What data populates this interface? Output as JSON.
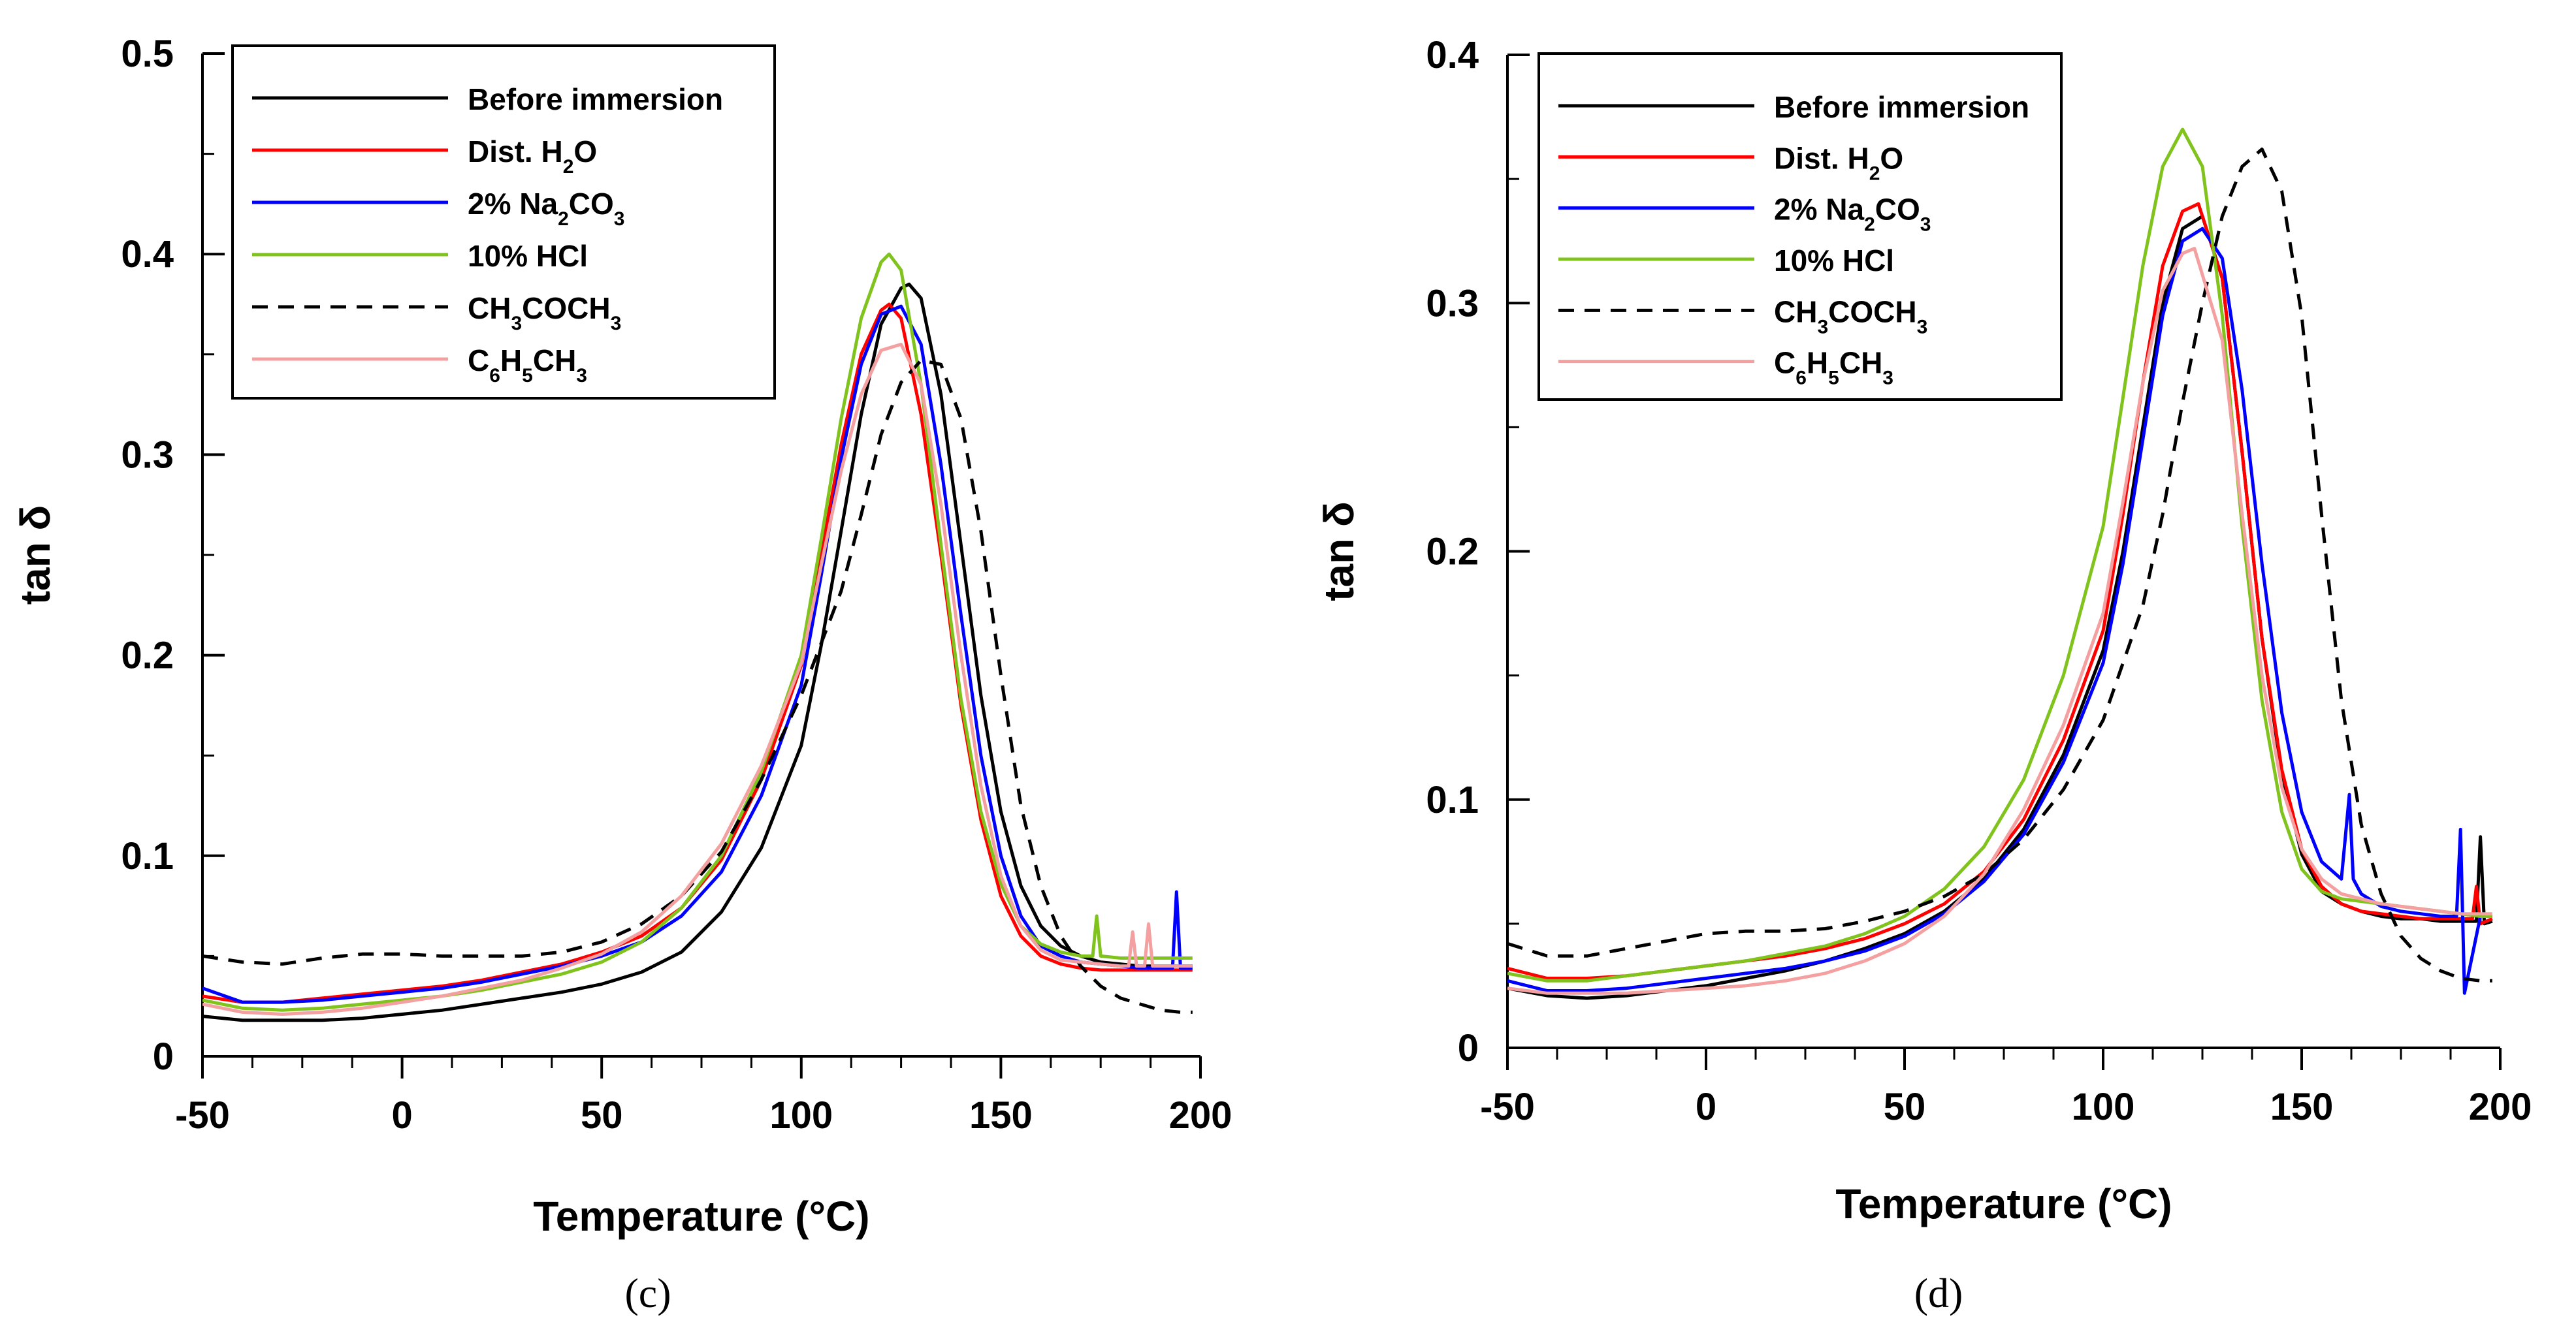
{
  "chart_data": [
    {
      "type": "line",
      "panel_label": "(c)",
      "xlabel": "Temperature (°C)",
      "ylabel": "tan δ",
      "xlim": [
        -50,
        200
      ],
      "ylim": [
        0,
        0.5
      ],
      "xticks": [
        -50,
        0,
        50,
        100,
        150,
        200
      ],
      "xtick_labels": [
        "-50",
        "0",
        "50",
        "100",
        "150",
        "200"
      ],
      "yticks": [
        0,
        0.1,
        0.2,
        0.3,
        0.4,
        0.5
      ],
      "ytick_labels": [
        "0",
        "0.1",
        "0.2",
        "0.3",
        "0.4",
        "0.5"
      ],
      "grid": false,
      "legend_position": "top-left",
      "series": [
        {
          "name": "Before immersion",
          "color": "#000000",
          "dash": "solid",
          "x": [
            -50,
            -40,
            -30,
            -20,
            -10,
            0,
            10,
            20,
            30,
            40,
            50,
            60,
            70,
            80,
            90,
            100,
            105,
            110,
            115,
            120,
            125,
            127,
            130,
            135,
            140,
            145,
            150,
            155,
            160,
            165,
            170,
            175,
            180,
            185,
            190,
            195,
            198
          ],
          "y": [
            0.02,
            0.018,
            0.018,
            0.018,
            0.019,
            0.021,
            0.023,
            0.026,
            0.029,
            0.032,
            0.036,
            0.042,
            0.052,
            0.072,
            0.104,
            0.155,
            0.205,
            0.262,
            0.32,
            0.365,
            0.383,
            0.385,
            0.378,
            0.33,
            0.255,
            0.18,
            0.122,
            0.085,
            0.065,
            0.055,
            0.05,
            0.047,
            0.046,
            0.045,
            0.045,
            0.045,
            0.045
          ]
        },
        {
          "name": "Dist. H₂O",
          "color": "#ff0000",
          "dash": "solid",
          "x": [
            -50,
            -40,
            -30,
            -20,
            -10,
            0,
            10,
            20,
            30,
            40,
            50,
            60,
            70,
            80,
            90,
            100,
            105,
            110,
            115,
            120,
            122,
            125,
            130,
            135,
            140,
            145,
            150,
            155,
            160,
            165,
            170,
            175,
            180,
            185,
            190,
            195,
            198
          ],
          "y": [
            0.03,
            0.027,
            0.027,
            0.029,
            0.031,
            0.033,
            0.035,
            0.038,
            0.042,
            0.046,
            0.052,
            0.06,
            0.074,
            0.098,
            0.138,
            0.195,
            0.25,
            0.305,
            0.35,
            0.372,
            0.375,
            0.368,
            0.32,
            0.25,
            0.175,
            0.118,
            0.08,
            0.06,
            0.05,
            0.046,
            0.044,
            0.043,
            0.043,
            0.043,
            0.043,
            0.043,
            0.043
          ]
        },
        {
          "name": "2% Na₂CO₃",
          "color": "#0000ff",
          "dash": "solid",
          "x": [
            -50,
            -40,
            -30,
            -20,
            -10,
            0,
            10,
            20,
            30,
            40,
            50,
            60,
            70,
            80,
            90,
            100,
            105,
            110,
            115,
            120,
            125,
            130,
            135,
            140,
            145,
            150,
            155,
            160,
            165,
            170,
            175,
            180,
            185,
            190,
            193,
            194,
            195,
            198
          ],
          "y": [
            0.034,
            0.027,
            0.027,
            0.028,
            0.03,
            0.032,
            0.034,
            0.037,
            0.041,
            0.045,
            0.05,
            0.057,
            0.07,
            0.092,
            0.13,
            0.185,
            0.24,
            0.298,
            0.345,
            0.37,
            0.374,
            0.355,
            0.295,
            0.22,
            0.15,
            0.1,
            0.07,
            0.055,
            0.05,
            0.047,
            0.046,
            0.045,
            0.044,
            0.044,
            0.044,
            0.082,
            0.044,
            0.044
          ]
        },
        {
          "name": "10% HCl",
          "color": "#7fc31c",
          "dash": "solid",
          "x": [
            -50,
            -40,
            -30,
            -20,
            -10,
            0,
            10,
            20,
            30,
            40,
            50,
            60,
            70,
            80,
            90,
            100,
            105,
            110,
            115,
            120,
            122,
            125,
            130,
            135,
            140,
            145,
            150,
            155,
            160,
            165,
            170,
            173,
            174,
            175,
            180,
            185,
            190,
            195,
            198
          ],
          "y": [
            0.028,
            0.024,
            0.023,
            0.024,
            0.026,
            0.028,
            0.03,
            0.033,
            0.037,
            0.041,
            0.047,
            0.057,
            0.074,
            0.1,
            0.142,
            0.2,
            0.258,
            0.318,
            0.368,
            0.396,
            0.4,
            0.392,
            0.335,
            0.255,
            0.178,
            0.122,
            0.086,
            0.065,
            0.056,
            0.052,
            0.05,
            0.05,
            0.07,
            0.05,
            0.049,
            0.049,
            0.049,
            0.049,
            0.049
          ]
        },
        {
          "name": "CH₃COCH₃",
          "color": "#000000",
          "dash": "dashed",
          "x": [
            -50,
            -40,
            -30,
            -20,
            -10,
            0,
            10,
            20,
            30,
            40,
            50,
            60,
            70,
            80,
            90,
            100,
            110,
            115,
            120,
            125,
            130,
            135,
            140,
            145,
            150,
            155,
            160,
            165,
            170,
            175,
            180,
            185,
            190,
            195,
            198
          ],
          "y": [
            0.05,
            0.047,
            0.046,
            0.049,
            0.051,
            0.051,
            0.05,
            0.05,
            0.05,
            0.052,
            0.057,
            0.066,
            0.08,
            0.102,
            0.138,
            0.18,
            0.232,
            0.27,
            0.31,
            0.336,
            0.347,
            0.345,
            0.318,
            0.262,
            0.19,
            0.125,
            0.085,
            0.06,
            0.045,
            0.035,
            0.029,
            0.026,
            0.023,
            0.022,
            0.022
          ]
        },
        {
          "name": "C₆H₅CH₃",
          "color": "#f4a0a0",
          "dash": "solid",
          "x": [
            -50,
            -40,
            -30,
            -20,
            -10,
            0,
            10,
            20,
            30,
            40,
            50,
            60,
            70,
            80,
            90,
            100,
            105,
            110,
            115,
            120,
            125,
            130,
            135,
            140,
            145,
            150,
            155,
            160,
            165,
            170,
            175,
            180,
            182,
            183,
            184,
            186,
            187,
            188,
            190,
            195,
            198
          ],
          "y": [
            0.026,
            0.022,
            0.021,
            0.022,
            0.024,
            0.027,
            0.03,
            0.034,
            0.038,
            0.044,
            0.051,
            0.062,
            0.08,
            0.106,
            0.145,
            0.196,
            0.245,
            0.292,
            0.33,
            0.352,
            0.355,
            0.335,
            0.275,
            0.2,
            0.135,
            0.09,
            0.065,
            0.053,
            0.048,
            0.047,
            0.046,
            0.045,
            0.045,
            0.062,
            0.045,
            0.045,
            0.066,
            0.045,
            0.045,
            0.045,
            0.045
          ]
        }
      ]
    },
    {
      "type": "line",
      "panel_label": "(d)",
      "xlabel": "Temperature (°C)",
      "ylabel": "tan δ",
      "xlim": [
        -50,
        200
      ],
      "ylim": [
        0,
        0.4
      ],
      "xticks": [
        -50,
        0,
        50,
        100,
        150,
        200
      ],
      "xtick_labels": [
        "-50",
        "0",
        "50",
        "100",
        "150",
        "200"
      ],
      "yticks": [
        0,
        0.1,
        0.2,
        0.3,
        0.4
      ],
      "ytick_labels": [
        "0",
        "0.1",
        "0.2",
        "0.3",
        "0.4"
      ],
      "grid": false,
      "legend_position": "top-left",
      "series": [
        {
          "name": "Before immersion",
          "color": "#000000",
          "dash": "solid",
          "x": [
            -50,
            -40,
            -30,
            -20,
            -10,
            0,
            10,
            20,
            30,
            40,
            50,
            60,
            70,
            80,
            90,
            100,
            105,
            110,
            115,
            120,
            125,
            130,
            135,
            140,
            145,
            150,
            155,
            160,
            165,
            170,
            175,
            180,
            185,
            190,
            194,
            195,
            196,
            198
          ],
          "y": [
            0.024,
            0.021,
            0.02,
            0.021,
            0.023,
            0.025,
            0.028,
            0.031,
            0.035,
            0.04,
            0.046,
            0.055,
            0.068,
            0.088,
            0.118,
            0.16,
            0.2,
            0.25,
            0.3,
            0.33,
            0.335,
            0.31,
            0.24,
            0.165,
            0.11,
            0.078,
            0.063,
            0.058,
            0.055,
            0.053,
            0.052,
            0.052,
            0.051,
            0.051,
            0.051,
            0.085,
            0.05,
            0.051
          ]
        },
        {
          "name": "Dist. H₂O",
          "color": "#ff0000",
          "dash": "solid",
          "x": [
            -50,
            -40,
            -30,
            -20,
            -10,
            0,
            10,
            20,
            30,
            40,
            50,
            60,
            70,
            80,
            90,
            100,
            105,
            110,
            115,
            120,
            124,
            130,
            135,
            140,
            145,
            150,
            155,
            160,
            165,
            170,
            175,
            180,
            185,
            190,
            193,
            194,
            195,
            198
          ],
          "y": [
            0.032,
            0.028,
            0.028,
            0.029,
            0.031,
            0.033,
            0.035,
            0.037,
            0.04,
            0.044,
            0.05,
            0.058,
            0.071,
            0.092,
            0.124,
            0.168,
            0.215,
            0.268,
            0.315,
            0.337,
            0.34,
            0.31,
            0.24,
            0.165,
            0.112,
            0.08,
            0.065,
            0.058,
            0.055,
            0.054,
            0.053,
            0.052,
            0.052,
            0.052,
            0.052,
            0.065,
            0.05,
            0.052
          ]
        },
        {
          "name": "2% Na₂CO₃",
          "color": "#0000ff",
          "dash": "solid",
          "x": [
            -50,
            -40,
            -30,
            -20,
            -10,
            0,
            10,
            20,
            30,
            40,
            50,
            60,
            70,
            80,
            90,
            100,
            105,
            110,
            115,
            120,
            125,
            130,
            135,
            140,
            145,
            150,
            155,
            160,
            162,
            163,
            165,
            170,
            175,
            180,
            185,
            189,
            190,
            191,
            195,
            198
          ],
          "y": [
            0.027,
            0.023,
            0.023,
            0.024,
            0.026,
            0.028,
            0.03,
            0.032,
            0.035,
            0.039,
            0.045,
            0.054,
            0.067,
            0.086,
            0.115,
            0.155,
            0.195,
            0.245,
            0.295,
            0.325,
            0.33,
            0.318,
            0.265,
            0.195,
            0.135,
            0.095,
            0.075,
            0.068,
            0.102,
            0.068,
            0.062,
            0.057,
            0.055,
            0.054,
            0.053,
            0.053,
            0.088,
            0.022,
            0.053,
            0.053
          ]
        },
        {
          "name": "10% HCl",
          "color": "#7fc31c",
          "dash": "solid",
          "x": [
            -50,
            -40,
            -30,
            -20,
            -10,
            0,
            10,
            20,
            30,
            40,
            50,
            60,
            70,
            80,
            90,
            100,
            105,
            110,
            115,
            120,
            125,
            130,
            135,
            140,
            145,
            150,
            155,
            160,
            165,
            170,
            175,
            180,
            185,
            190,
            195,
            198
          ],
          "y": [
            0.03,
            0.027,
            0.027,
            0.029,
            0.031,
            0.033,
            0.035,
            0.038,
            0.041,
            0.046,
            0.053,
            0.064,
            0.081,
            0.108,
            0.15,
            0.21,
            0.262,
            0.315,
            0.355,
            0.37,
            0.355,
            0.295,
            0.21,
            0.14,
            0.095,
            0.072,
            0.063,
            0.06,
            0.059,
            0.058,
            0.057,
            0.056,
            0.055,
            0.054,
            0.053,
            0.053
          ]
        },
        {
          "name": "CH₃COCH₃",
          "color": "#000000",
          "dash": "dashed",
          "x": [
            -50,
            -40,
            -30,
            -20,
            -10,
            0,
            10,
            20,
            30,
            40,
            50,
            60,
            70,
            80,
            90,
            100,
            110,
            115,
            120,
            125,
            130,
            135,
            140,
            145,
            150,
            155,
            160,
            165,
            170,
            175,
            180,
            185,
            190,
            195,
            198
          ],
          "y": [
            0.042,
            0.037,
            0.037,
            0.04,
            0.043,
            0.046,
            0.047,
            0.047,
            0.048,
            0.051,
            0.055,
            0.061,
            0.07,
            0.084,
            0.104,
            0.132,
            0.178,
            0.215,
            0.26,
            0.3,
            0.335,
            0.355,
            0.362,
            0.345,
            0.295,
            0.215,
            0.14,
            0.09,
            0.062,
            0.045,
            0.036,
            0.031,
            0.028,
            0.027,
            0.027
          ]
        },
        {
          "name": "C₆H₅CH₃",
          "color": "#f4a0a0",
          "dash": "solid",
          "x": [
            -50,
            -40,
            -30,
            -20,
            -10,
            0,
            10,
            20,
            30,
            40,
            50,
            60,
            70,
            80,
            90,
            100,
            105,
            110,
            115,
            120,
            123,
            130,
            135,
            140,
            145,
            150,
            155,
            160,
            165,
            170,
            175,
            180,
            185,
            190,
            195,
            198
          ],
          "y": [
            0.024,
            0.022,
            0.022,
            0.022,
            0.023,
            0.024,
            0.025,
            0.027,
            0.03,
            0.035,
            0.042,
            0.053,
            0.07,
            0.096,
            0.13,
            0.175,
            0.22,
            0.268,
            0.305,
            0.32,
            0.322,
            0.285,
            0.215,
            0.15,
            0.105,
            0.08,
            0.068,
            0.062,
            0.06,
            0.058,
            0.057,
            0.056,
            0.055,
            0.054,
            0.054,
            0.054
          ]
        }
      ]
    }
  ]
}
